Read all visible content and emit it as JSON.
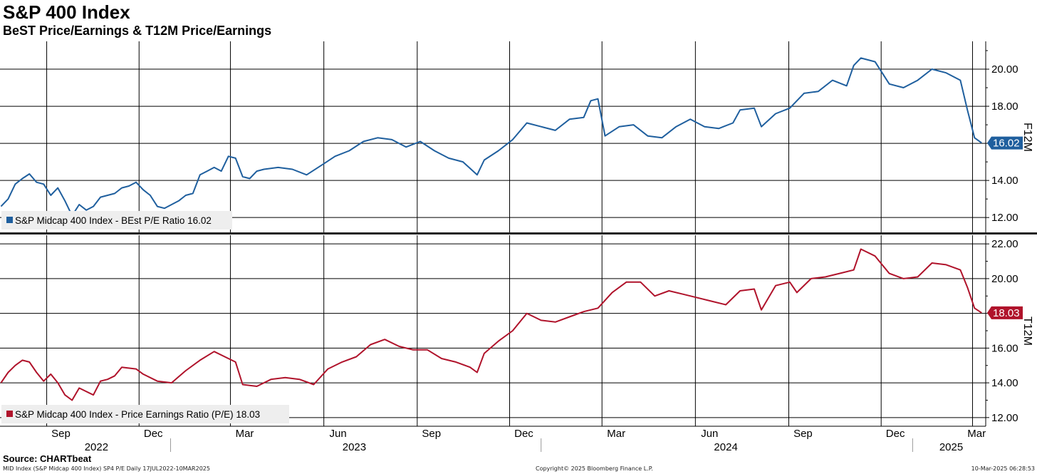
{
  "header": {
    "title": "S&P 400 Index",
    "subtitle": "BeST Price/Earnings & T12M Price/Earnings"
  },
  "footer": {
    "source": "Source: CHARTbeat",
    "ticker_info": "MID Index (S&P Midcap 400 Index) SP4 P/E  Daily 17JUL2022-10MAR2025",
    "copyright": "Copyright© 2025 Bloomberg Finance L.P.",
    "timestamp": "10-Mar-2025 06:28:53"
  },
  "colors": {
    "blue": "#1f5f9e",
    "red": "#b0132b",
    "grid": "#000000",
    "legend_bg": "#eeeeee"
  },
  "chart_data": [
    {
      "type": "line",
      "panel": "top",
      "axis_label": "F12M",
      "ylim": [
        11.2,
        21.5
      ],
      "yticks": [
        12,
        14,
        16,
        18,
        20
      ],
      "last_value_label": "16.02",
      "series": [
        {
          "name": "S&P Midcap 400 Index - BEst P/E Ratio 16.02",
          "color": "#1f5f9e",
          "points": [
            [
              "2022-07-18",
              12.6
            ],
            [
              "2022-07-25",
              13.0
            ],
            [
              "2022-08-01",
              13.8
            ],
            [
              "2022-08-08",
              14.1
            ],
            [
              "2022-08-15",
              14.35
            ],
            [
              "2022-08-22",
              13.9
            ],
            [
              "2022-08-29",
              13.8
            ],
            [
              "2022-09-05",
              13.2
            ],
            [
              "2022-09-12",
              13.6
            ],
            [
              "2022-09-19",
              12.9
            ],
            [
              "2022-09-26",
              12.1
            ],
            [
              "2022-10-03",
              12.7
            ],
            [
              "2022-10-10",
              12.4
            ],
            [
              "2022-10-17",
              12.6
            ],
            [
              "2022-10-24",
              13.1
            ],
            [
              "2022-10-31",
              13.2
            ],
            [
              "2022-11-07",
              13.3
            ],
            [
              "2022-11-14",
              13.6
            ],
            [
              "2022-11-21",
              13.7
            ],
            [
              "2022-11-28",
              13.9
            ],
            [
              "2022-12-05",
              13.5
            ],
            [
              "2022-12-12",
              13.2
            ],
            [
              "2022-12-19",
              12.6
            ],
            [
              "2022-12-26",
              12.5
            ],
            [
              "2023-01-09",
              12.9
            ],
            [
              "2023-01-16",
              13.2
            ],
            [
              "2023-01-23",
              13.3
            ],
            [
              "2023-01-30",
              14.3
            ],
            [
              "2023-02-06",
              14.5
            ],
            [
              "2023-02-13",
              14.7
            ],
            [
              "2023-02-20",
              14.5
            ],
            [
              "2023-02-27",
              15.3
            ],
            [
              "2023-03-06",
              15.2
            ],
            [
              "2023-03-13",
              14.2
            ],
            [
              "2023-03-20",
              14.1
            ],
            [
              "2023-03-27",
              14.5
            ],
            [
              "2023-04-03",
              14.6
            ],
            [
              "2023-04-17",
              14.7
            ],
            [
              "2023-05-01",
              14.6
            ],
            [
              "2023-05-15",
              14.3
            ],
            [
              "2023-06-01",
              14.9
            ],
            [
              "2023-06-12",
              15.3
            ],
            [
              "2023-06-26",
              15.6
            ],
            [
              "2023-07-10",
              16.1
            ],
            [
              "2023-07-24",
              16.3
            ],
            [
              "2023-08-07",
              16.2
            ],
            [
              "2023-08-21",
              15.8
            ],
            [
              "2023-09-04",
              16.1
            ],
            [
              "2023-09-18",
              15.6
            ],
            [
              "2023-10-02",
              15.2
            ],
            [
              "2023-10-16",
              15.0
            ],
            [
              "2023-10-30",
              14.3
            ],
            [
              "2023-11-06",
              15.1
            ],
            [
              "2023-11-20",
              15.6
            ],
            [
              "2023-12-04",
              16.2
            ],
            [
              "2023-12-18",
              17.1
            ],
            [
              "2024-01-01",
              16.9
            ],
            [
              "2024-01-15",
              16.7
            ],
            [
              "2024-01-29",
              17.3
            ],
            [
              "2024-02-12",
              17.4
            ],
            [
              "2024-02-19",
              18.3
            ],
            [
              "2024-02-26",
              18.4
            ],
            [
              "2024-03-04",
              16.4
            ],
            [
              "2024-03-18",
              16.9
            ],
            [
              "2024-04-01",
              17.0
            ],
            [
              "2024-04-15",
              16.4
            ],
            [
              "2024-04-29",
              16.3
            ],
            [
              "2024-05-13",
              16.9
            ],
            [
              "2024-05-27",
              17.3
            ],
            [
              "2024-06-10",
              16.9
            ],
            [
              "2024-06-24",
              16.8
            ],
            [
              "2024-07-08",
              17.1
            ],
            [
              "2024-07-15",
              17.8
            ],
            [
              "2024-07-29",
              17.9
            ],
            [
              "2024-08-05",
              16.9
            ],
            [
              "2024-08-19",
              17.6
            ],
            [
              "2024-09-02",
              17.9
            ],
            [
              "2024-09-16",
              18.7
            ],
            [
              "2024-09-30",
              18.8
            ],
            [
              "2024-10-14",
              19.4
            ],
            [
              "2024-10-28",
              19.1
            ],
            [
              "2024-11-04",
              20.2
            ],
            [
              "2024-11-11",
              20.6
            ],
            [
              "2024-11-25",
              20.4
            ],
            [
              "2024-12-09",
              19.2
            ],
            [
              "2024-12-23",
              19.0
            ],
            [
              "2025-01-06",
              19.4
            ],
            [
              "2025-01-20",
              20.0
            ],
            [
              "2025-02-03",
              19.8
            ],
            [
              "2025-02-17",
              19.4
            ],
            [
              "2025-02-24",
              17.8
            ],
            [
              "2025-03-03",
              16.3
            ],
            [
              "2025-03-10",
              16.02
            ]
          ]
        }
      ]
    },
    {
      "type": "line",
      "panel": "bottom",
      "axis_label": "T12M",
      "ylim": [
        11.5,
        22.5
      ],
      "yticks": [
        12,
        14,
        16,
        18,
        20,
        22
      ],
      "last_value_label": "18.03",
      "series": [
        {
          "name": "S&P Midcap 400 Index - Price Earnings Ratio (P/E) 18.03",
          "color": "#b0132b",
          "points": [
            [
              "2022-07-18",
              14.0
            ],
            [
              "2022-07-25",
              14.6
            ],
            [
              "2022-08-01",
              15.0
            ],
            [
              "2022-08-08",
              15.3
            ],
            [
              "2022-08-15",
              15.2
            ],
            [
              "2022-08-22",
              14.6
            ],
            [
              "2022-08-29",
              14.1
            ],
            [
              "2022-09-05",
              14.5
            ],
            [
              "2022-09-12",
              14.0
            ],
            [
              "2022-09-19",
              13.3
            ],
            [
              "2022-09-26",
              13.0
            ],
            [
              "2022-10-03",
              13.7
            ],
            [
              "2022-10-17",
              13.3
            ],
            [
              "2022-10-24",
              14.1
            ],
            [
              "2022-10-31",
              14.2
            ],
            [
              "2022-11-07",
              14.4
            ],
            [
              "2022-11-14",
              14.9
            ],
            [
              "2022-11-28",
              14.8
            ],
            [
              "2022-12-05",
              14.5
            ],
            [
              "2022-12-19",
              14.1
            ],
            [
              "2023-01-02",
              14.0
            ],
            [
              "2023-01-16",
              14.7
            ],
            [
              "2023-01-30",
              15.3
            ],
            [
              "2023-02-13",
              15.8
            ],
            [
              "2023-02-27",
              15.4
            ],
            [
              "2023-03-06",
              15.2
            ],
            [
              "2023-03-13",
              13.9
            ],
            [
              "2023-03-27",
              13.8
            ],
            [
              "2023-04-10",
              14.2
            ],
            [
              "2023-04-24",
              14.3
            ],
            [
              "2023-05-08",
              14.2
            ],
            [
              "2023-05-22",
              13.9
            ],
            [
              "2023-06-05",
              14.8
            ],
            [
              "2023-06-19",
              15.2
            ],
            [
              "2023-07-03",
              15.5
            ],
            [
              "2023-07-17",
              16.2
            ],
            [
              "2023-07-31",
              16.5
            ],
            [
              "2023-08-14",
              16.1
            ],
            [
              "2023-08-28",
              15.9
            ],
            [
              "2023-09-11",
              15.9
            ],
            [
              "2023-09-25",
              15.4
            ],
            [
              "2023-10-09",
              15.2
            ],
            [
              "2023-10-23",
              14.9
            ],
            [
              "2023-10-30",
              14.6
            ],
            [
              "2023-11-06",
              15.7
            ],
            [
              "2023-11-20",
              16.4
            ],
            [
              "2023-12-04",
              17.0
            ],
            [
              "2023-12-18",
              18.0
            ],
            [
              "2024-01-01",
              17.6
            ],
            [
              "2024-01-15",
              17.5
            ],
            [
              "2024-01-29",
              17.8
            ],
            [
              "2024-02-12",
              18.1
            ],
            [
              "2024-02-26",
              18.3
            ],
            [
              "2024-03-11",
              19.2
            ],
            [
              "2024-03-25",
              19.8
            ],
            [
              "2024-04-08",
              19.8
            ],
            [
              "2024-04-22",
              19.0
            ],
            [
              "2024-05-06",
              19.3
            ],
            [
              "2024-05-20",
              19.1
            ],
            [
              "2024-06-03",
              18.9
            ],
            [
              "2024-06-17",
              18.7
            ],
            [
              "2024-07-01",
              18.5
            ],
            [
              "2024-07-15",
              19.3
            ],
            [
              "2024-07-29",
              19.4
            ],
            [
              "2024-08-05",
              18.2
            ],
            [
              "2024-08-19",
              19.6
            ],
            [
              "2024-09-02",
              19.8
            ],
            [
              "2024-09-09",
              19.2
            ],
            [
              "2024-09-23",
              20.0
            ],
            [
              "2024-10-07",
              20.1
            ],
            [
              "2024-10-21",
              20.3
            ],
            [
              "2024-11-04",
              20.5
            ],
            [
              "2024-11-11",
              21.7
            ],
            [
              "2024-11-25",
              21.3
            ],
            [
              "2024-12-09",
              20.3
            ],
            [
              "2024-12-23",
              20.0
            ],
            [
              "2025-01-06",
              20.1
            ],
            [
              "2025-01-20",
              20.9
            ],
            [
              "2025-02-03",
              20.8
            ],
            [
              "2025-02-17",
              20.5
            ],
            [
              "2025-02-24",
              19.5
            ],
            [
              "2025-03-03",
              18.3
            ],
            [
              "2025-03-10",
              18.03
            ]
          ]
        }
      ]
    }
  ],
  "x_axis": {
    "months": [
      {
        "label": "Sep",
        "date": "2022-09-15"
      },
      {
        "label": "Dec",
        "date": "2022-12-15"
      },
      {
        "label": "Mar",
        "date": "2023-03-15"
      },
      {
        "label": "Jun",
        "date": "2023-06-15"
      },
      {
        "label": "Sep",
        "date": "2023-09-15"
      },
      {
        "label": "Dec",
        "date": "2023-12-15"
      },
      {
        "label": "Mar",
        "date": "2024-03-15"
      },
      {
        "label": "Jun",
        "date": "2024-06-15"
      },
      {
        "label": "Sep",
        "date": "2024-09-15"
      },
      {
        "label": "Dec",
        "date": "2024-12-15"
      },
      {
        "label": "Mar",
        "date": "2025-03-05"
      }
    ],
    "years": [
      {
        "label": "2022",
        "date": "2022-10-20"
      },
      {
        "label": "2023",
        "date": "2023-07-01"
      },
      {
        "label": "2024",
        "date": "2024-07-01"
      },
      {
        "label": "2025",
        "date": "2025-02-08"
      }
    ]
  }
}
